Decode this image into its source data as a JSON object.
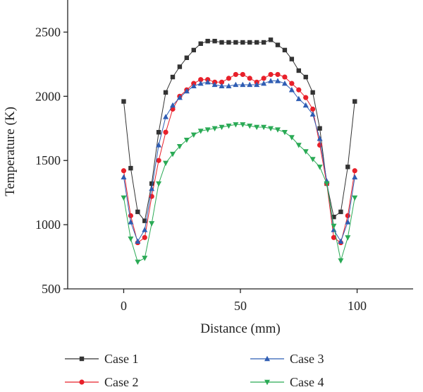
{
  "chart_data": {
    "type": "line",
    "title": "",
    "xlabel": "Distance (mm)",
    "ylabel": "Temperature (K)",
    "xlim": [
      -24,
      124
    ],
    "ylim": [
      500,
      2750
    ],
    "xticks": [
      0,
      50,
      100
    ],
    "yticks": [
      500,
      1000,
      1500,
      2000,
      2500
    ],
    "grid": false,
    "legend_position": "bottom",
    "series": [
      {
        "name": "Case 1",
        "color": "#333333",
        "marker": "square",
        "x": [
          0,
          3,
          6,
          9,
          12,
          15,
          18,
          21,
          24,
          27,
          30,
          33,
          36,
          39,
          42,
          45,
          48,
          51,
          54,
          57,
          60,
          63,
          66,
          69,
          72,
          75,
          78,
          81,
          84,
          87,
          90,
          93,
          96,
          99
        ],
        "y": [
          1960,
          1440,
          1100,
          1030,
          1320,
          1720,
          2030,
          2150,
          2230,
          2300,
          2360,
          2410,
          2430,
          2430,
          2420,
          2420,
          2420,
          2420,
          2420,
          2420,
          2420,
          2440,
          2400,
          2360,
          2290,
          2200,
          2150,
          2030,
          1750,
          1320,
          1060,
          1100,
          1450,
          1960
        ]
      },
      {
        "name": "Case 2",
        "color": "#e8202a",
        "marker": "circle",
        "x": [
          0,
          3,
          6,
          9,
          12,
          15,
          18,
          21,
          24,
          27,
          30,
          33,
          36,
          39,
          42,
          45,
          48,
          51,
          54,
          57,
          60,
          63,
          66,
          69,
          72,
          75,
          78,
          81,
          84,
          87,
          90,
          93,
          96,
          99
        ],
        "y": [
          1420,
          1070,
          860,
          900,
          1220,
          1500,
          1720,
          1900,
          2000,
          2050,
          2100,
          2130,
          2130,
          2110,
          2110,
          2140,
          2170,
          2170,
          2140,
          2110,
          2140,
          2170,
          2170,
          2150,
          2100,
          2050,
          1990,
          1900,
          1620,
          1320,
          900,
          860,
          1070,
          1420
        ]
      },
      {
        "name": "Case 3",
        "color": "#2f5db3",
        "marker": "triangle-up",
        "x": [
          0,
          3,
          6,
          9,
          12,
          15,
          18,
          21,
          24,
          27,
          30,
          33,
          36,
          39,
          42,
          45,
          48,
          51,
          54,
          57,
          60,
          63,
          66,
          69,
          72,
          75,
          78,
          81,
          84,
          87,
          90,
          93,
          96,
          99
        ],
        "y": [
          1370,
          1020,
          870,
          960,
          1280,
          1620,
          1840,
          1930,
          1990,
          2040,
          2080,
          2100,
          2110,
          2090,
          2080,
          2080,
          2090,
          2090,
          2090,
          2090,
          2100,
          2120,
          2120,
          2100,
          2050,
          1980,
          1930,
          1860,
          1670,
          1340,
          960,
          870,
          1020,
          1370
        ]
      },
      {
        "name": "Case 4",
        "color": "#2aaa55",
        "marker": "triangle-down",
        "x": [
          0,
          3,
          6,
          9,
          12,
          15,
          18,
          21,
          24,
          27,
          30,
          33,
          36,
          39,
          42,
          45,
          48,
          51,
          54,
          57,
          60,
          63,
          66,
          69,
          72,
          75,
          78,
          81,
          84,
          87,
          90,
          93,
          96,
          99
        ],
        "y": [
          1210,
          890,
          710,
          740,
          1010,
          1320,
          1480,
          1550,
          1610,
          1660,
          1700,
          1730,
          1740,
          1750,
          1760,
          1770,
          1780,
          1780,
          1770,
          1760,
          1760,
          1750,
          1740,
          1720,
          1680,
          1620,
          1570,
          1510,
          1450,
          1320,
          990,
          720,
          900,
          1210
        ]
      }
    ]
  }
}
